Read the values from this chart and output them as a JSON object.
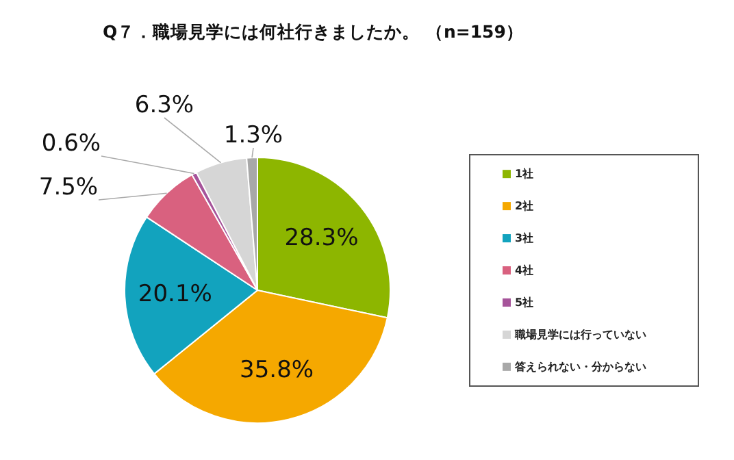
{
  "chart_data": {
    "type": "pie",
    "title": "Q７．職場見学には何社行きましたか。 （n=159）",
    "categories": [
      "1社",
      "2社",
      "3社",
      "4社",
      "5社",
      "職場見学には行っていない",
      "答えられない・分からない"
    ],
    "values": [
      28.3,
      35.8,
      20.1,
      7.5,
      0.6,
      6.3,
      1.3
    ],
    "value_labels": [
      "28.3%",
      "35.8%",
      "20.1%",
      "7.5%",
      "0.6%",
      "6.3%",
      "1.3%"
    ],
    "colors": [
      "#8db600",
      "#f5a800",
      "#12a3be",
      "#d9617f",
      "#a6549a",
      "#d6d6d6",
      "#a8a8a8"
    ],
    "legend": "right"
  }
}
